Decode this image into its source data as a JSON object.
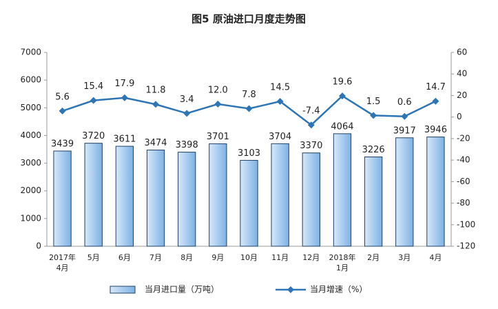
{
  "chart_data": {
    "type": "bar-line",
    "title": "图5 原油进口月度走势图",
    "categories": [
      "2017年\n4月",
      "5月",
      "6月",
      "7月",
      "8月",
      "9月",
      "10月",
      "11月",
      "12月",
      "2018年\n1月",
      "2月",
      "3月",
      "4月"
    ],
    "series": [
      {
        "name": "当月进口量（万吨）",
        "type": "bar",
        "color": "#a9cdef",
        "values": [
          3439,
          3720,
          3611,
          3474,
          3398,
          3701,
          3103,
          3704,
          3370,
          4064,
          3226,
          3917,
          3946
        ]
      },
      {
        "name": "当月增速（%）",
        "type": "line",
        "axis": "y2",
        "color": "#2e75b6",
        "values": [
          5.6,
          15.4,
          17.9,
          11.8,
          3.4,
          12.0,
          7.8,
          14.5,
          -7.4,
          19.6,
          1.5,
          0.6,
          14.7
        ],
        "value_labels": [
          "5.6",
          "15.4",
          "17.9",
          "11.8",
          "3.4",
          "12.0",
          "7.8",
          "14.5",
          "-7.4",
          "19.6",
          "1.5",
          "0.6",
          "14.7"
        ]
      }
    ],
    "ylim": [
      0,
      7000
    ],
    "yticks": [
      0,
      1000,
      2000,
      3000,
      4000,
      5000,
      6000,
      7000
    ],
    "y2lim": [
      -120,
      60
    ],
    "y2ticks": [
      -120,
      -100,
      -80,
      -60,
      -40,
      -20,
      0,
      20,
      40,
      60
    ],
    "grid": false
  }
}
